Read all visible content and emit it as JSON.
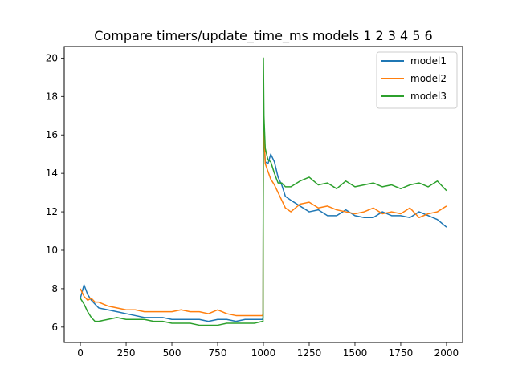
{
  "chart_data": {
    "type": "line",
    "title": "Compare timers/update_time_ms models 1 2 3 4 5 6",
    "xlabel": "",
    "ylabel": "",
    "xlim": [
      -88,
      2088
    ],
    "ylim": [
      5.2,
      20.6
    ],
    "xticks": [
      0,
      250,
      500,
      750,
      1000,
      1250,
      1500,
      1750,
      2000
    ],
    "yticks": [
      6,
      8,
      10,
      12,
      14,
      16,
      18,
      20
    ],
    "xtick_labels": [
      "0",
      "250",
      "500",
      "750",
      "1000",
      "1250",
      "1500",
      "1750",
      "2000"
    ],
    "ytick_labels": [
      "6",
      "8",
      "10",
      "12",
      "14",
      "16",
      "18",
      "20"
    ],
    "grid": false,
    "legend_position": "top-right",
    "series": [
      {
        "name": "model1",
        "color": "#1f77b4",
        "x": [
          0,
          20,
          40,
          60,
          80,
          100,
          150,
          200,
          250,
          300,
          350,
          400,
          450,
          500,
          550,
          600,
          650,
          700,
          750,
          800,
          850,
          900,
          950,
          995,
          998,
          1000,
          1003,
          1010,
          1025,
          1040,
          1060,
          1080,
          1100,
          1120,
          1150,
          1200,
          1250,
          1300,
          1350,
          1400,
          1450,
          1500,
          1550,
          1600,
          1650,
          1700,
          1750,
          1800,
          1850,
          1900,
          1950,
          2000
        ],
        "y": [
          7.5,
          8.2,
          7.7,
          7.4,
          7.2,
          7.0,
          6.9,
          6.8,
          6.7,
          6.6,
          6.5,
          6.5,
          6.5,
          6.4,
          6.4,
          6.4,
          6.4,
          6.3,
          6.4,
          6.4,
          6.3,
          6.4,
          6.4,
          6.4,
          6.5,
          18.0,
          16.0,
          14.6,
          14.5,
          15.0,
          14.6,
          13.8,
          13.4,
          12.8,
          12.6,
          12.3,
          12.0,
          12.1,
          11.8,
          11.8,
          12.1,
          11.8,
          11.7,
          11.7,
          12.0,
          11.8,
          11.8,
          11.7,
          12.0,
          11.8,
          11.6,
          11.2
        ]
      },
      {
        "name": "model2",
        "color": "#ff7f0e",
        "x": [
          0,
          20,
          40,
          60,
          80,
          100,
          150,
          200,
          250,
          300,
          350,
          400,
          450,
          500,
          550,
          600,
          650,
          700,
          750,
          800,
          850,
          900,
          950,
          995,
          998,
          1000,
          1003,
          1010,
          1025,
          1040,
          1060,
          1080,
          1100,
          1120,
          1150,
          1200,
          1250,
          1300,
          1350,
          1400,
          1450,
          1500,
          1550,
          1600,
          1650,
          1700,
          1750,
          1800,
          1850,
          1900,
          1950,
          2000
        ],
        "y": [
          8.0,
          7.6,
          7.4,
          7.5,
          7.3,
          7.3,
          7.1,
          7.0,
          6.9,
          6.9,
          6.8,
          6.8,
          6.8,
          6.8,
          6.9,
          6.8,
          6.8,
          6.7,
          6.9,
          6.7,
          6.6,
          6.6,
          6.6,
          6.6,
          6.7,
          17.0,
          16.2,
          14.5,
          14.1,
          13.7,
          13.4,
          13.0,
          12.6,
          12.2,
          12.0,
          12.4,
          12.5,
          12.2,
          12.3,
          12.1,
          12.0,
          11.9,
          12.0,
          12.2,
          11.9,
          12.0,
          11.9,
          12.2,
          11.7,
          11.9,
          12.0,
          12.3
        ]
      },
      {
        "name": "model3",
        "color": "#2ca02c",
        "x": [
          0,
          20,
          40,
          60,
          80,
          100,
          150,
          200,
          250,
          300,
          350,
          400,
          450,
          500,
          550,
          600,
          650,
          700,
          750,
          800,
          850,
          900,
          950,
          995,
          998,
          1000,
          1003,
          1010,
          1025,
          1040,
          1060,
          1080,
          1100,
          1120,
          1150,
          1200,
          1250,
          1300,
          1350,
          1400,
          1450,
          1500,
          1550,
          1600,
          1650,
          1700,
          1750,
          1800,
          1850,
          1900,
          1950,
          2000
        ],
        "y": [
          7.5,
          7.2,
          6.8,
          6.5,
          6.3,
          6.3,
          6.4,
          6.5,
          6.4,
          6.4,
          6.4,
          6.3,
          6.3,
          6.2,
          6.2,
          6.2,
          6.1,
          6.1,
          6.1,
          6.2,
          6.2,
          6.2,
          6.2,
          6.3,
          6.3,
          20.0,
          17.0,
          15.3,
          14.7,
          14.6,
          14.0,
          13.5,
          13.5,
          13.3,
          13.3,
          13.6,
          13.8,
          13.4,
          13.5,
          13.2,
          13.6,
          13.3,
          13.4,
          13.5,
          13.3,
          13.4,
          13.2,
          13.4,
          13.5,
          13.3,
          13.6,
          13.1
        ]
      }
    ]
  }
}
